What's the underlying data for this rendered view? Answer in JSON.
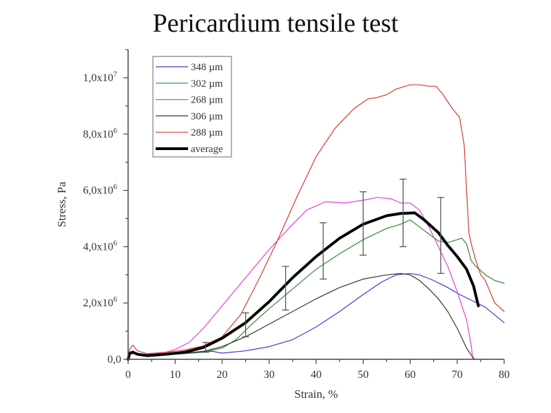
{
  "chart_data": {
    "type": "line",
    "title": "Pericardium tensile test",
    "xlabel": "Strain, %",
    "ylabel": "Stress, Pa",
    "xlim": [
      0,
      80
    ],
    "ylim": [
      0,
      11000000
    ],
    "x_ticks": [
      {
        "value": 0,
        "label": "0"
      },
      {
        "value": 10,
        "label": "10"
      },
      {
        "value": 20,
        "label": "20"
      },
      {
        "value": 30,
        "label": "30"
      },
      {
        "value": 40,
        "label": "40"
      },
      {
        "value": 50,
        "label": "50"
      },
      {
        "value": 60,
        "label": "60"
      },
      {
        "value": 70,
        "label": "70"
      },
      {
        "value": 80,
        "label": "80"
      }
    ],
    "y_ticks": [
      {
        "value": 0,
        "mantissa": "0,0",
        "exp": ""
      },
      {
        "value": 2000000,
        "mantissa": "2,0x10",
        "exp": "6"
      },
      {
        "value": 4000000,
        "mantissa": "4,0x10",
        "exp": "6"
      },
      {
        "value": 6000000,
        "mantissa": "6,0x10",
        "exp": "6"
      },
      {
        "value": 8000000,
        "mantissa": "8,0x10",
        "exp": "6"
      },
      {
        "value": 10000000,
        "mantissa": "1,0x10",
        "exp": "7"
      }
    ],
    "legend_position": "top-left",
    "series": [
      {
        "name": "348 µm",
        "color": "#3a3ad0",
        "width": 1.2,
        "points": [
          [
            0,
            0
          ],
          [
            0.3,
            250000
          ],
          [
            1,
            280000
          ],
          [
            2,
            200000
          ],
          [
            4,
            150000
          ],
          [
            8,
            180000
          ],
          [
            12,
            220000
          ],
          [
            16,
            280000
          ],
          [
            18,
            280000
          ],
          [
            20,
            220000
          ],
          [
            25,
            300000
          ],
          [
            30,
            450000
          ],
          [
            35,
            700000
          ],
          [
            40,
            1150000
          ],
          [
            45,
            1700000
          ],
          [
            50,
            2300000
          ],
          [
            54,
            2750000
          ],
          [
            57,
            3000000
          ],
          [
            60,
            3050000
          ],
          [
            62,
            3000000
          ],
          [
            65,
            2800000
          ],
          [
            68,
            2550000
          ],
          [
            70,
            2350000
          ],
          [
            73,
            2100000
          ],
          [
            76,
            1850000
          ],
          [
            80,
            1300000
          ]
        ]
      },
      {
        "name": "302 µm",
        "color": "#2e8a2e",
        "width": 1.2,
        "points": [
          [
            0,
            0
          ],
          [
            0.3,
            250000
          ],
          [
            1,
            280000
          ],
          [
            2,
            200000
          ],
          [
            4,
            150000
          ],
          [
            8,
            170000
          ],
          [
            12,
            200000
          ],
          [
            16,
            250000
          ],
          [
            20,
            400000
          ],
          [
            23,
            700000
          ],
          [
            26,
            1200000
          ],
          [
            30,
            1800000
          ],
          [
            35,
            2500000
          ],
          [
            40,
            3200000
          ],
          [
            45,
            3750000
          ],
          [
            50,
            4250000
          ],
          [
            55,
            4650000
          ],
          [
            58,
            4800000
          ],
          [
            60,
            4950000
          ],
          [
            62,
            4700000
          ],
          [
            64,
            4450000
          ],
          [
            66,
            4200000
          ],
          [
            68,
            4150000
          ],
          [
            70,
            4250000
          ],
          [
            71,
            4300000
          ],
          [
            72,
            4100000
          ],
          [
            73,
            3500000
          ],
          [
            74,
            3300000
          ],
          [
            76,
            3000000
          ],
          [
            78,
            2800000
          ],
          [
            80,
            2700000
          ]
        ]
      },
      {
        "name": "268 µm",
        "color": "#e03ee0",
        "width": 1.2,
        "points": [
          [
            0,
            0
          ],
          [
            0.3,
            250000
          ],
          [
            1,
            300000
          ],
          [
            2,
            200000
          ],
          [
            4,
            180000
          ],
          [
            8,
            250000
          ],
          [
            10,
            350000
          ],
          [
            13,
            600000
          ],
          [
            16,
            1100000
          ],
          [
            20,
            1900000
          ],
          [
            25,
            2900000
          ],
          [
            30,
            3900000
          ],
          [
            35,
            4800000
          ],
          [
            38,
            5300000
          ],
          [
            42,
            5600000
          ],
          [
            46,
            5550000
          ],
          [
            50,
            5650000
          ],
          [
            53,
            5750000
          ],
          [
            56,
            5700000
          ],
          [
            58,
            5550000
          ],
          [
            60,
            5550000
          ],
          [
            62,
            5300000
          ],
          [
            64,
            4700000
          ],
          [
            66,
            4000000
          ],
          [
            68,
            3300000
          ],
          [
            70,
            2400000
          ],
          [
            72,
            1400000
          ],
          [
            73,
            500000
          ],
          [
            73.3,
            0
          ]
        ]
      },
      {
        "name": "306 µm",
        "color": "#333333",
        "width": 1.2,
        "points": [
          [
            0,
            0
          ],
          [
            0.3,
            250000
          ],
          [
            1,
            280000
          ],
          [
            2,
            200000
          ],
          [
            4,
            150000
          ],
          [
            8,
            180000
          ],
          [
            12,
            220000
          ],
          [
            16,
            280000
          ],
          [
            20,
            450000
          ],
          [
            25,
            800000
          ],
          [
            30,
            1250000
          ],
          [
            35,
            1700000
          ],
          [
            40,
            2150000
          ],
          [
            45,
            2550000
          ],
          [
            50,
            2850000
          ],
          [
            55,
            3000000
          ],
          [
            58,
            3050000
          ],
          [
            60,
            3000000
          ],
          [
            62,
            2800000
          ],
          [
            64,
            2500000
          ],
          [
            66,
            2150000
          ],
          [
            68,
            1700000
          ],
          [
            70,
            1100000
          ],
          [
            72,
            400000
          ],
          [
            73,
            150000
          ],
          [
            73.7,
            0
          ]
        ]
      },
      {
        "name": "288 µm",
        "color": "#d43a2e",
        "width": 1.2,
        "points": [
          [
            0,
            0
          ],
          [
            0.3,
            350000
          ],
          [
            1,
            500000
          ],
          [
            2,
            300000
          ],
          [
            4,
            200000
          ],
          [
            8,
            250000
          ],
          [
            12,
            330000
          ],
          [
            16,
            480000
          ],
          [
            20,
            800000
          ],
          [
            24,
            1600000
          ],
          [
            28,
            2900000
          ],
          [
            32,
            4300000
          ],
          [
            36,
            5800000
          ],
          [
            40,
            7200000
          ],
          [
            44,
            8200000
          ],
          [
            48,
            8900000
          ],
          [
            51,
            9250000
          ],
          [
            53,
            9300000
          ],
          [
            55,
            9400000
          ],
          [
            57,
            9600000
          ],
          [
            60,
            9750000
          ],
          [
            62,
            9750000
          ],
          [
            64,
            9700000
          ],
          [
            65.5,
            9700000
          ],
          [
            67,
            9400000
          ],
          [
            69,
            8900000
          ],
          [
            70.5,
            8600000
          ],
          [
            71.5,
            7600000
          ],
          [
            72,
            6000000
          ],
          [
            72.5,
            4500000
          ],
          [
            73,
            4100000
          ],
          [
            74,
            3500000
          ],
          [
            75,
            3000000
          ],
          [
            76,
            2800000
          ],
          [
            77,
            2400000
          ],
          [
            78,
            2000000
          ],
          [
            80,
            1700000
          ]
        ]
      },
      {
        "name": "average",
        "color": "#000000",
        "width": 4,
        "points": [
          [
            0,
            0
          ],
          [
            0.3,
            200000
          ],
          [
            1,
            250000
          ],
          [
            2,
            180000
          ],
          [
            4,
            130000
          ],
          [
            8,
            180000
          ],
          [
            12,
            250000
          ],
          [
            16,
            420000
          ],
          [
            20,
            750000
          ],
          [
            25,
            1300000
          ],
          [
            30,
            2050000
          ],
          [
            35,
            2900000
          ],
          [
            40,
            3650000
          ],
          [
            45,
            4300000
          ],
          [
            50,
            4800000
          ],
          [
            55,
            5100000
          ],
          [
            58,
            5180000
          ],
          [
            61,
            5200000
          ],
          [
            63,
            4950000
          ],
          [
            66,
            4500000
          ],
          [
            68,
            4050000
          ],
          [
            70,
            3650000
          ],
          [
            72,
            3200000
          ],
          [
            73.5,
            2600000
          ],
          [
            74.5,
            1900000
          ]
        ]
      }
    ],
    "error_bars": [
      {
        "x": 16.5,
        "y": 420000,
        "low": 250000,
        "high": 600000
      },
      {
        "x": 25,
        "y": 1250000,
        "low": 800000,
        "high": 1650000
      },
      {
        "x": 33.5,
        "y": 2500000,
        "low": 1750000,
        "high": 3300000
      },
      {
        "x": 41.5,
        "y": 3900000,
        "low": 2850000,
        "high": 4850000
      },
      {
        "x": 50,
        "y": 4800000,
        "low": 3700000,
        "high": 5950000
      },
      {
        "x": 58.5,
        "y": 5200000,
        "low": 4000000,
        "high": 6400000
      },
      {
        "x": 66.5,
        "y": 4400000,
        "low": 3050000,
        "high": 5750000
      }
    ]
  }
}
